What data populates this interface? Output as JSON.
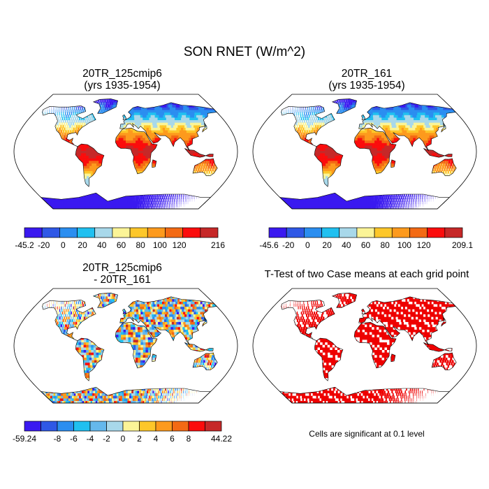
{
  "title": "SON RNET (W/m^2)",
  "panels": [
    {
      "title_line1": "20TR_125cmip6",
      "title_line2": "(yrs 1935-1954)",
      "type": "field",
      "colorbar": {
        "colors": [
          "#3a19f0",
          "#2f58e6",
          "#2b8ef0",
          "#20c0f0",
          "#a8d8ea",
          "#fbf497",
          "#fdc72a",
          "#fd9a1d",
          "#f36a14",
          "#fb0d0d",
          "#c62828"
        ],
        "labels": [
          "-45.2",
          "-20",
          "0",
          "20",
          "40",
          "60",
          "80",
          "100",
          "120",
          "",
          "216"
        ]
      }
    },
    {
      "title_line1": "20TR_161",
      "title_line2": "(yrs 1935-1954)",
      "type": "field",
      "colorbar": {
        "colors": [
          "#3a19f0",
          "#2f58e6",
          "#2b8ef0",
          "#20c0f0",
          "#a8d8ea",
          "#fbf497",
          "#fdc72a",
          "#fd9a1d",
          "#f36a14",
          "#fb0d0d",
          "#c62828"
        ],
        "labels": [
          "-45.6",
          "-20",
          "0",
          "20",
          "40",
          "60",
          "80",
          "100",
          "120",
          "",
          "209.1"
        ]
      }
    },
    {
      "title_line1": "20TR_125cmip6",
      "title_line2": "- 20TR_161",
      "type": "difference",
      "colorbar": {
        "colors": [
          "#3a19f0",
          "#2f58e6",
          "#2b8ef0",
          "#20c0f0",
          "#65b8ec",
          "#a8d8ea",
          "#fbf497",
          "#fdc72a",
          "#fd9a1d",
          "#f36a14",
          "#fb0d0d",
          "#c62828"
        ],
        "labels": [
          "-59.24",
          "",
          "-8",
          "-6",
          "-4",
          "-2",
          "0",
          "2",
          "4",
          "6",
          "8",
          "",
          "44.22"
        ]
      }
    },
    {
      "title_line1": "T-Test of two Case means at each grid point",
      "type": "significance",
      "note": "Cells are significant at 0.1 level",
      "significant_color": "#ee0000"
    }
  ]
}
